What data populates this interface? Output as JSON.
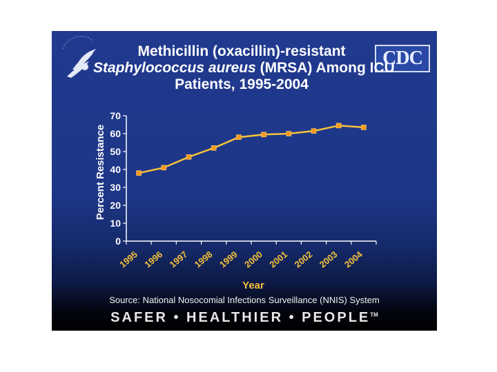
{
  "slide": {
    "title_line1": "Methicillin (oxacillin)-resistant",
    "title_line2_italic": "Staphylococcus aureus",
    "title_line2_rest": " (MRSA) Among ICU",
    "title_line3": "Patients, 1995-2004",
    "logo_text": "CDC",
    "source": "Source: National Nosocomial Infections Surveillance (NNIS) System",
    "tagline": "SAFER • HEALTHIER • PEOPLE",
    "tagline_mark": "TM"
  },
  "colors": {
    "background": "#1d3686",
    "line": "#f6c23a",
    "marker": "#f59a1e",
    "text": "#ffffff"
  },
  "chart_data": {
    "type": "line",
    "title": "Methicillin (oxacillin)-resistant Staphylococcus aureus (MRSA) Among ICU Patients, 1995-2004",
    "xlabel": "Year",
    "ylabel": "Percent Resistance",
    "ylim": [
      0,
      70
    ],
    "yticks": [
      "0",
      "10",
      "20",
      "30",
      "40",
      "50",
      "60",
      "70"
    ],
    "categories": [
      "1995",
      "1996",
      "1997",
      "1998",
      "1999",
      "2000",
      "2001",
      "2002",
      "2003",
      "2004"
    ],
    "values": [
      38,
      41,
      47,
      52,
      58,
      59.5,
      60,
      61.5,
      64.5,
      63.5
    ],
    "grid": false
  }
}
